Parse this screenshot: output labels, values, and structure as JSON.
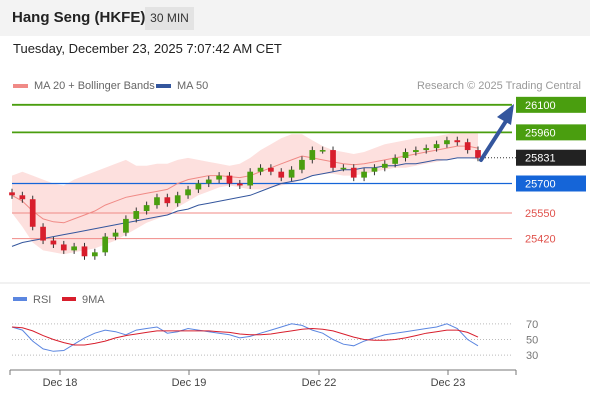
{
  "header": {
    "title": "Hang Seng (HKFE)",
    "timeframe": "30 MIN",
    "timestamp": "Tuesday, December 23, 2025 7:07:42 AM CET"
  },
  "legend": {
    "items": [
      {
        "label": "MA 20 + Bollinger Bands",
        "color": "#f08a86"
      },
      {
        "label": "MA 50",
        "color": "#34569d"
      }
    ],
    "copyright": "Research © 2025 Trading Central"
  },
  "chart_data": {
    "type": "candlestick",
    "title": "Hang Seng (HKFE)",
    "interval": "30 MIN",
    "ylim": [
      25250,
      26150
    ],
    "x_ticks": [
      "Dec 18",
      "Dec 19",
      "Dec 22",
      "Dec 23"
    ],
    "current_price": "25831",
    "levels": [
      {
        "label": "26100",
        "value": 26100,
        "kind": "resistance",
        "color": "#4a9e0f"
      },
      {
        "label": "25960",
        "value": 25960,
        "kind": "resistance",
        "color": "#4a9e0f"
      },
      {
        "label": "25700",
        "value": 25700,
        "kind": "pivot",
        "color": "#1565d8"
      },
      {
        "label": "25550",
        "value": 25550,
        "kind": "support",
        "color": "#f08a86"
      },
      {
        "label": "25420",
        "value": 25420,
        "kind": "support",
        "color": "#f08a86"
      }
    ],
    "series": [
      {
        "name": "MA 20 + Bollinger Bands",
        "color": "#f08a86",
        "ma": [
          25640,
          25610,
          25560,
          25520,
          25505,
          25500,
          25520,
          25540,
          25560,
          25590,
          25610,
          25630,
          25640,
          25650,
          25660,
          25670,
          25700,
          25720,
          25730,
          25740,
          25740,
          25735,
          25730,
          25740,
          25760,
          25780,
          25800,
          25820,
          25840,
          25830,
          25820,
          25810,
          25800,
          25795,
          25800,
          25810,
          25820,
          25830,
          25840,
          25850,
          25860,
          25870,
          25880,
          25890,
          25890,
          25880
        ],
        "band_upper": [
          25740,
          25760,
          25740,
          25720,
          25700,
          25690,
          25720,
          25740,
          25760,
          25780,
          25800,
          25820,
          25790,
          25790,
          25800,
          25800,
          25820,
          25830,
          25820,
          25810,
          25800,
          25790,
          25800,
          25830,
          25870,
          25900,
          25930,
          25950,
          25950,
          25920,
          25890,
          25870,
          25860,
          25850,
          25860,
          25880,
          25900,
          25910,
          25920,
          25930,
          25935,
          25940,
          25950,
          25960,
          25960,
          25955
        ],
        "band_lower": [
          25550,
          25480,
          25400,
          25360,
          25350,
          25340,
          25350,
          25360,
          25370,
          25390,
          25410,
          25440,
          25470,
          25500,
          25520,
          25540,
          25580,
          25610,
          25640,
          25660,
          25680,
          25690,
          25680,
          25670,
          25670,
          25680,
          25690,
          25700,
          25720,
          25740,
          25750,
          25750,
          25740,
          25740,
          25750,
          25760,
          25770,
          25780,
          25780,
          25790,
          25800,
          25810,
          25820,
          25830,
          25830,
          25820
        ]
      },
      {
        "name": "MA 50",
        "color": "#34569d",
        "values": [
          25380,
          25400,
          25410,
          25420,
          25430,
          25440,
          25450,
          25460,
          25470,
          25480,
          25490,
          25500,
          25510,
          25520,
          25530,
          25540,
          25560,
          25570,
          25590,
          25600,
          25610,
          25620,
          25630,
          25640,
          25660,
          25680,
          25700,
          25710,
          25720,
          25740,
          25750,
          25760,
          25770,
          25770,
          25780,
          25780,
          25790,
          25790,
          25800,
          25800,
          25810,
          25820,
          25820,
          25830,
          25830,
          25830
        ]
      },
      {
        "name": "Price",
        "close": [
          25640,
          25620,
          25480,
          25410,
          25390,
          25360,
          25380,
          25330,
          25350,
          25430,
          25450,
          25520,
          25560,
          25590,
          25630,
          25600,
          25640,
          25670,
          25700,
          25720,
          25740,
          25700,
          25690,
          25760,
          25780,
          25760,
          25730,
          25770,
          25820,
          25870,
          25870,
          25780,
          25780,
          25730,
          25760,
          25780,
          25800,
          25830,
          25860,
          25870,
          25880,
          25900,
          25920,
          25910,
          25870,
          25831
        ]
      }
    ],
    "indicator": {
      "ylim": [
        20,
        80
      ],
      "ticks": [
        70,
        50,
        30
      ],
      "series": [
        {
          "name": "RSI",
          "color": "#5b86e0",
          "values": [
            66,
            62,
            48,
            38,
            35,
            36,
            44,
            52,
            58,
            62,
            60,
            56,
            62,
            64,
            66,
            58,
            60,
            64,
            62,
            60,
            58,
            56,
            52,
            54,
            58,
            62,
            66,
            70,
            68,
            62,
            58,
            50,
            44,
            42,
            48,
            52,
            56,
            58,
            60,
            62,
            64,
            66,
            70,
            64,
            50,
            42
          ]
        },
        {
          "name": "9MA",
          "color": "#d81e2c",
          "values": [
            66,
            65,
            61,
            55,
            50,
            46,
            43,
            43,
            45,
            48,
            52,
            55,
            57,
            59,
            61,
            61,
            61,
            61,
            61,
            61,
            60,
            59,
            57,
            56,
            56,
            57,
            59,
            61,
            63,
            64,
            63,
            61,
            57,
            53,
            50,
            49,
            49,
            50,
            52,
            55,
            58,
            60,
            62,
            62,
            59,
            53
          ]
        }
      ]
    }
  }
}
